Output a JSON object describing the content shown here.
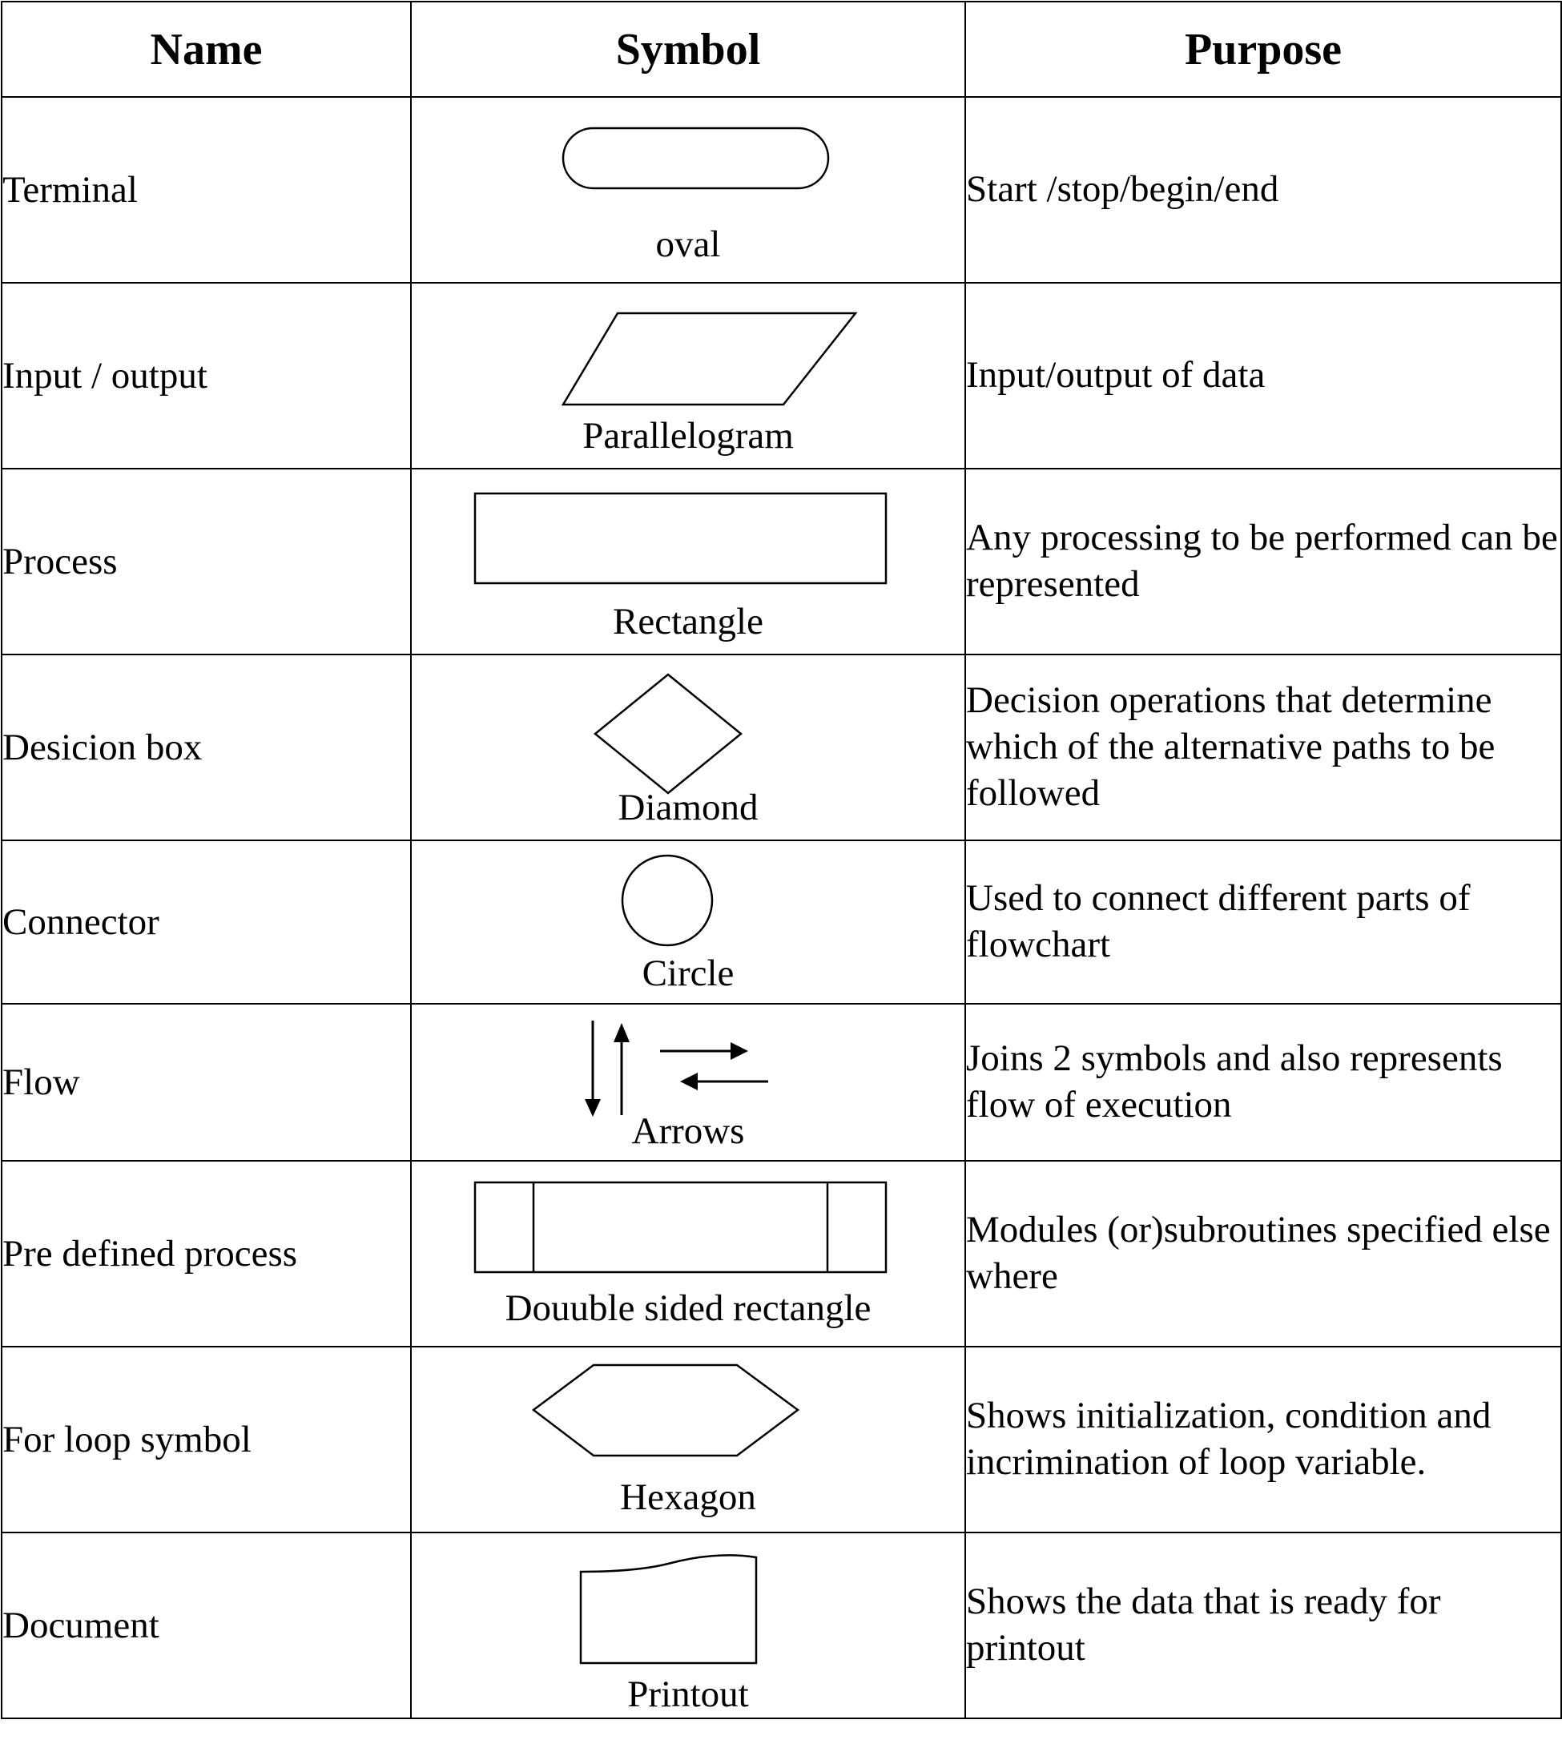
{
  "header": {
    "name": "Name",
    "symbol": "Symbol",
    "purpose": "Purpose"
  },
  "rows": [
    {
      "name": "Terminal",
      "symbol": "oval",
      "purpose": "Start /stop/begin/end",
      "icon": "oval-icon"
    },
    {
      "name": "Input / output",
      "symbol": "Parallelogram",
      "purpose": "Input/output of data",
      "icon": "parallelogram-icon"
    },
    {
      "name": "Process",
      "symbol": "Rectangle",
      "purpose": "Any processing to be performed can be represented",
      "icon": "rectangle-icon"
    },
    {
      "name": "Desicion box",
      "symbol": "Diamond",
      "purpose": "Decision operations that determine which of the alternative paths to be followed",
      "icon": "diamond-icon"
    },
    {
      "name": "Connector",
      "symbol": "Circle",
      "purpose": "Used to connect different parts of flowchart",
      "icon": "circle-icon"
    },
    {
      "name": "Flow",
      "symbol": "Arrows",
      "purpose": "Joins 2 symbols and also represents flow of execution",
      "icon": "arrows-icon"
    },
    {
      "name": "Pre defined process",
      "symbol": "Douuble sided rectangle",
      "purpose": "Modules (or)subroutines specified else where",
      "icon": "double-sided-rectangle-icon"
    },
    {
      "name": "For loop symbol",
      "symbol": "Hexagon",
      "purpose": "Shows initialization, condition and incrimination of loop variable.",
      "icon": "hexagon-icon"
    },
    {
      "name": "Document",
      "symbol": "Printout",
      "purpose": "Shows the data that is ready for printout",
      "icon": "document-icon"
    }
  ]
}
